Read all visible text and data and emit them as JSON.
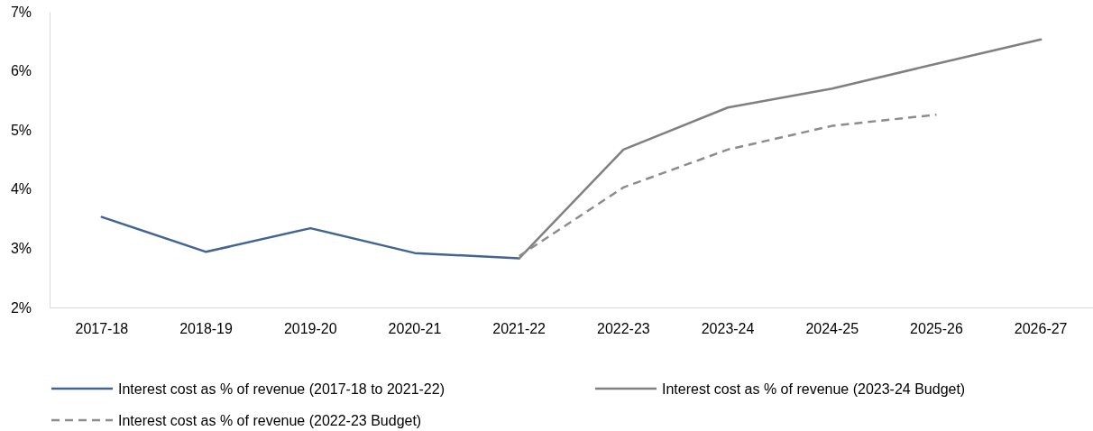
{
  "chart_data": {
    "type": "line",
    "categories": [
      "2017-18",
      "2018-19",
      "2019-20",
      "2020-21",
      "2021-22",
      "2022-23",
      "2023-24",
      "2024-25",
      "2025-26",
      "2026-27"
    ],
    "series": [
      {
        "name": "Interest cost as % of revenue (2017-18 to 2021-22)",
        "color": "#416493",
        "line_style": "solid",
        "values": [
          3.53,
          2.94,
          3.34,
          2.92,
          2.83,
          null,
          null,
          null,
          null,
          null
        ]
      },
      {
        "name": "Interest cost as % of revenue (2023-24 Budget)",
        "color": "#808080",
        "line_style": "solid",
        "values": [
          null,
          null,
          null,
          null,
          2.83,
          4.67,
          5.38,
          5.7,
          6.12,
          6.53
        ]
      },
      {
        "name": "Interest cost as % of revenue (2022-23 Budget)",
        "color": "#8c8c8c",
        "line_style": "dashed",
        "values": [
          null,
          null,
          null,
          null,
          2.87,
          4.03,
          4.67,
          5.07,
          5.26,
          null
        ]
      }
    ],
    "ylim": [
      2,
      7
    ],
    "yticks": [
      {
        "value": 2,
        "label": "2%"
      },
      {
        "value": 3,
        "label": "3%"
      },
      {
        "value": 4,
        "label": "4%"
      },
      {
        "value": 5,
        "label": "5%"
      },
      {
        "value": 6,
        "label": "6%"
      },
      {
        "value": 7,
        "label": "7%"
      }
    ],
    "legend": "bottom"
  }
}
